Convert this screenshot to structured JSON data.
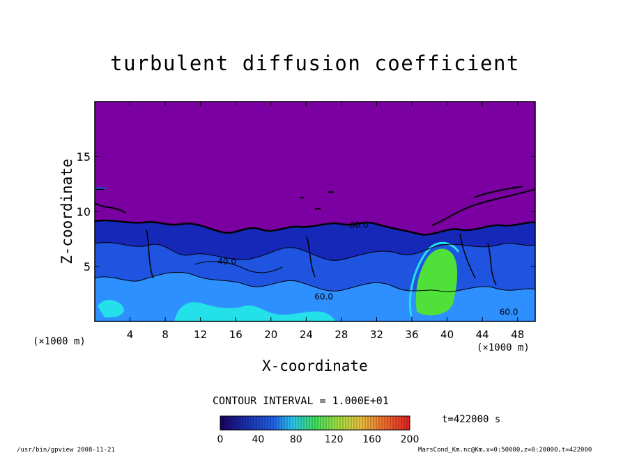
{
  "chart_data": {
    "type": "heatmap",
    "title": "turbulent diffusion coefficient",
    "xlabel": "X-coordinate",
    "ylabel": "Z-coordinate",
    "x_unit_left": "(×1000 m)",
    "x_unit_right": "(×1000 m)",
    "xlim": [
      0,
      50
    ],
    "ylim": [
      0,
      20
    ],
    "x_ticks": [
      "4",
      "8",
      "12",
      "16",
      "20",
      "24",
      "28",
      "32",
      "36",
      "40",
      "44",
      "48"
    ],
    "y_ticks": [
      "5",
      "10",
      "15"
    ],
    "contour_interval": "CONTOUR INTERVAL = 1.000E+01",
    "contour_labels": [
      {
        "text": "40.0",
        "x": 15.0,
        "z": 5.2
      },
      {
        "text": "60.0",
        "x": 26.0,
        "z": 2.0
      },
      {
        "text": "60.0",
        "x": 47.0,
        "z": 0.6
      },
      {
        "text": "80.0",
        "x": 30.0,
        "z": 8.5
      }
    ],
    "colorbar": {
      "min": 0,
      "max": 200,
      "ticks": [
        "0",
        "40",
        "80",
        "120",
        "160",
        "200"
      ]
    },
    "time_label": "t=422000 s",
    "background_color": "#7a00a2",
    "grid": false
  },
  "footer": {
    "left": "/usr/bin/gpview  2008-11-21",
    "right": "MarsCond_Km.nc@Km,x=0:50000,z=0:20000,t=422000"
  },
  "colors": {
    "purple": "#7a00a2",
    "dark_blue": "#1628b8",
    "blue": "#1e54e0",
    "light_blue": "#2e8fff",
    "cyan": "#24e0e8",
    "green": "#4fe03a",
    "contour": "#000000"
  }
}
